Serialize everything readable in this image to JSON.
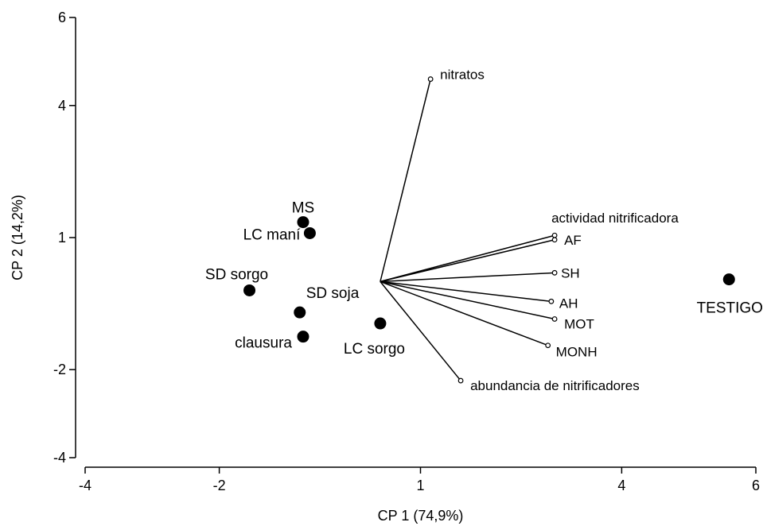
{
  "chart_data": {
    "type": "scatter",
    "subtype": "biplot",
    "title": "",
    "xlabel": "CP 1 (74,9%)",
    "ylabel": "CP 2 (14,2%)",
    "xlim": [
      -4,
      6
    ],
    "ylim": [
      -4,
      6
    ],
    "x_ticks": [
      -4,
      -2,
      1,
      4,
      6
    ],
    "x_tick_labels": [
      "-4",
      "-2",
      "1",
      "4",
      "6"
    ],
    "y_ticks": [
      -4,
      -2,
      1,
      4,
      6
    ],
    "y_tick_labels": [
      "-4",
      "-2",
      "1",
      "4",
      "6"
    ],
    "grid": false,
    "vector_origin": [
      0.4,
      0.0
    ],
    "observations": [
      {
        "label": "MS",
        "x": -0.75,
        "y": 1.35
      },
      {
        "label": "LC maní",
        "x": -0.65,
        "y": 1.1
      },
      {
        "label": "SD sorgo",
        "x": -1.55,
        "y": -0.2
      },
      {
        "label": "SD soja",
        "x": -0.8,
        "y": -0.7
      },
      {
        "label": "clausura",
        "x": -0.75,
        "y": -1.25
      },
      {
        "label": "LC sorgo",
        "x": 0.4,
        "y": -0.95
      },
      {
        "label": "TESTIGO",
        "x": 5.6,
        "y": 0.05
      }
    ],
    "variables": [
      {
        "label": "nitratos",
        "x": 1.15,
        "y": 4.6
      },
      {
        "label": "actividad nitrificadora",
        "x": 3.0,
        "y": 1.05
      },
      {
        "label": "AF",
        "x": 3.0,
        "y": 0.95
      },
      {
        "label": "SH",
        "x": 3.0,
        "y": 0.2
      },
      {
        "label": "AH",
        "x": 2.95,
        "y": -0.45
      },
      {
        "label": "MOT",
        "x": 3.0,
        "y": -0.85
      },
      {
        "label": "MONH",
        "x": 2.9,
        "y": -1.45
      },
      {
        "label": "abundancia de nitrificadores",
        "x": 1.6,
        "y": -2.25
      }
    ]
  }
}
